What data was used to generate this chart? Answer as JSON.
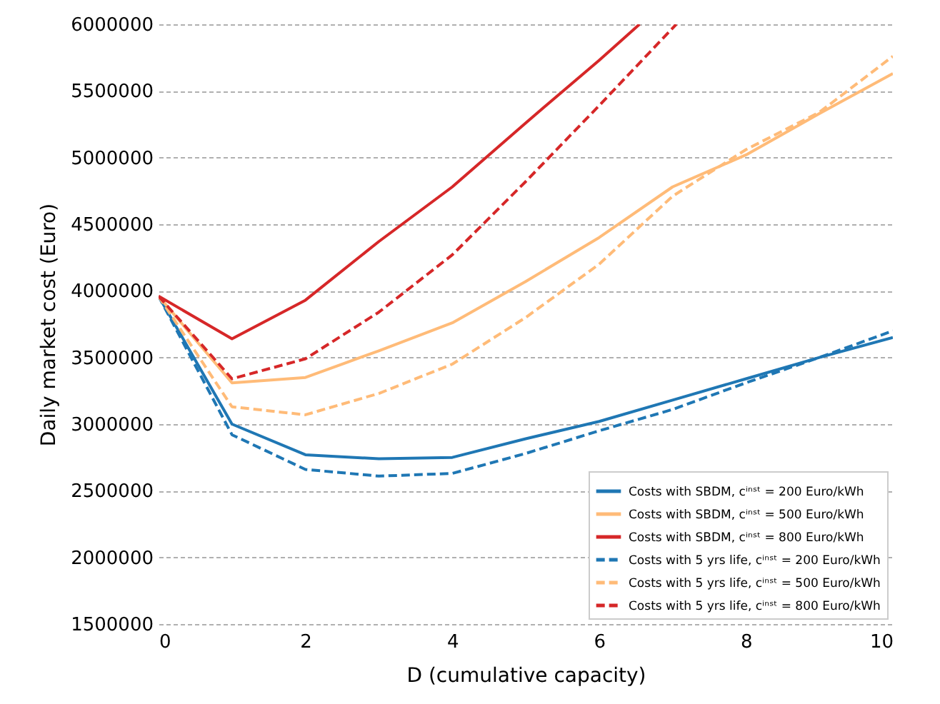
{
  "chart_data": {
    "type": "line",
    "xlabel": "D (cumulative capacity)",
    "ylabel": "Daily market cost (Euro)",
    "x": [
      0,
      1,
      2,
      3,
      4,
      5,
      6,
      7,
      8,
      9,
      10
    ],
    "series": [
      {
        "name": "Costs with SBDM, cⁱⁿˢᵗ = 200 Euro/kWh",
        "color": "#1f77b4",
        "line_style": "solid",
        "values": [
          3960000,
          3000000,
          2770000,
          2740000,
          2750000,
          2890000,
          3020000,
          3180000,
          3340000,
          3500000,
          3650000
        ]
      },
      {
        "name": "Costs with SBDM, cⁱⁿˢᵗ = 500 Euro/kWh",
        "color": "#ffbb78",
        "line_style": "solid",
        "values": [
          3960000,
          3310000,
          3350000,
          3550000,
          3760000,
          4070000,
          4400000,
          4780000,
          5020000,
          5330000,
          5630000
        ]
      },
      {
        "name": "Costs with SBDM, cⁱⁿˢᵗ = 800 Euro/kWh",
        "color": "#d62728",
        "line_style": "solid",
        "x": [
          0,
          1,
          2,
          3,
          4,
          5,
          6,
          6.55
        ],
        "values": [
          3960000,
          3640000,
          3930000,
          4370000,
          4780000,
          5260000,
          5730000,
          6000000
        ]
      },
      {
        "name": "Costs with 5 yrs life, cⁱⁿˢᵗ = 200 Euro/kWh",
        "color": "#1f77b4",
        "line_style": "dashed",
        "values": [
          3960000,
          2920000,
          2660000,
          2610000,
          2630000,
          2780000,
          2950000,
          3110000,
          3310000,
          3500000,
          3700000
        ]
      },
      {
        "name": "Costs with 5 yrs life, cⁱⁿˢᵗ = 500 Euro/kWh",
        "color": "#ffbb78",
        "line_style": "dashed",
        "values": [
          3960000,
          3130000,
          3070000,
          3230000,
          3450000,
          3800000,
          4200000,
          4710000,
          5060000,
          5340000,
          5760000
        ]
      },
      {
        "name": "Costs with 5 yrs life, cⁱⁿˢᵗ = 800 Euro/kWh",
        "color": "#d62728",
        "line_style": "dashed",
        "x": [
          0,
          1,
          2,
          3,
          4,
          5,
          6,
          7.05
        ],
        "values": [
          3960000,
          3340000,
          3490000,
          3840000,
          4270000,
          4820000,
          5390000,
          6000000
        ]
      }
    ],
    "xlim": [
      0,
      10
    ],
    "xticks": [
      0,
      2,
      4,
      6,
      8,
      10
    ],
    "ylim": [
      1500000,
      6000000
    ],
    "yticks": [
      1500000,
      2000000,
      2500000,
      3000000,
      3500000,
      4000000,
      4500000,
      5000000,
      5500000,
      6000000
    ],
    "grid": "y",
    "legend": "bottom right"
  }
}
